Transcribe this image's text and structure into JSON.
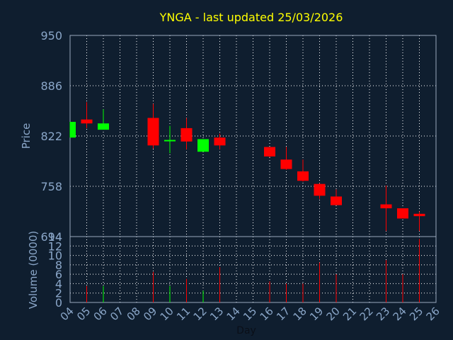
{
  "chart_data": {
    "type": "candlestick",
    "title": "YNGA - last updated 25/03/2026",
    "xlabel": "Day",
    "ylabel": "Price",
    "volume_label": "Volume (0000)",
    "ylim": [
      694,
      950
    ],
    "y_ticks": [
      "950",
      "886",
      "822",
      "758",
      "694"
    ],
    "volume_ylim": [
      0,
      14
    ],
    "volume_ticks": [
      "14",
      "12",
      "10",
      "8",
      "6",
      "4",
      "2",
      "0"
    ],
    "x_ticks": [
      "04",
      "05",
      "06",
      "07",
      "08",
      "09",
      "10",
      "11",
      "12",
      "13",
      "14",
      "15",
      "16",
      "17",
      "18",
      "19",
      "20",
      "21",
      "22",
      "23",
      "24",
      "25",
      "26"
    ],
    "colors": {
      "up": "#00ff00",
      "down": "#ff0000",
      "title": "#ffff00",
      "axis_text": "#8aa6c8",
      "background": "#0f1e2f",
      "grid": "#ffffff"
    },
    "candles": [
      {
        "day": "04",
        "open": 820,
        "high": 840,
        "low": 820,
        "close": 840,
        "volume": 0
      },
      {
        "day": "05",
        "open": 843,
        "high": 865,
        "low": 832,
        "close": 838,
        "volume": 3.5
      },
      {
        "day": "06",
        "open": 830,
        "high": 856,
        "low": 830,
        "close": 838,
        "volume": 3.5
      },
      {
        "day": "09",
        "open": 845,
        "high": 863,
        "low": 806,
        "close": 810,
        "volume": 6.5
      },
      {
        "day": "10",
        "open": 816,
        "high": 835,
        "low": 800,
        "close": 817,
        "volume": 3.5
      },
      {
        "day": "11",
        "open": 832,
        "high": 845,
        "low": 805,
        "close": 815,
        "volume": 5
      },
      {
        "day": "12",
        "open": 802,
        "high": 818,
        "low": 802,
        "close": 818,
        "volume": 2.5
      },
      {
        "day": "13",
        "open": 820,
        "high": 825,
        "low": 805,
        "close": 810,
        "volume": 7.5
      },
      {
        "day": "16",
        "open": 808,
        "high": 808,
        "low": 795,
        "close": 796,
        "volume": 4.5
      },
      {
        "day": "17",
        "open": 792,
        "high": 808,
        "low": 779,
        "close": 780,
        "volume": 4
      },
      {
        "day": "18",
        "open": 777,
        "high": 792,
        "low": 764,
        "close": 765,
        "volume": 4
      },
      {
        "day": "19",
        "open": 761,
        "high": 762,
        "low": 742,
        "close": 746,
        "volume": 8.5
      },
      {
        "day": "20",
        "open": 745,
        "high": 754,
        "low": 734,
        "close": 734,
        "volume": 6
      },
      {
        "day": "23",
        "open": 735,
        "high": 759,
        "low": 701,
        "close": 730,
        "volume": 9
      },
      {
        "day": "24",
        "open": 730,
        "high": 730,
        "low": 717,
        "close": 717,
        "volume": 6
      },
      {
        "day": "25",
        "open": 723,
        "high": 726,
        "low": 701,
        "close": 720,
        "volume": 13.5
      }
    ]
  }
}
